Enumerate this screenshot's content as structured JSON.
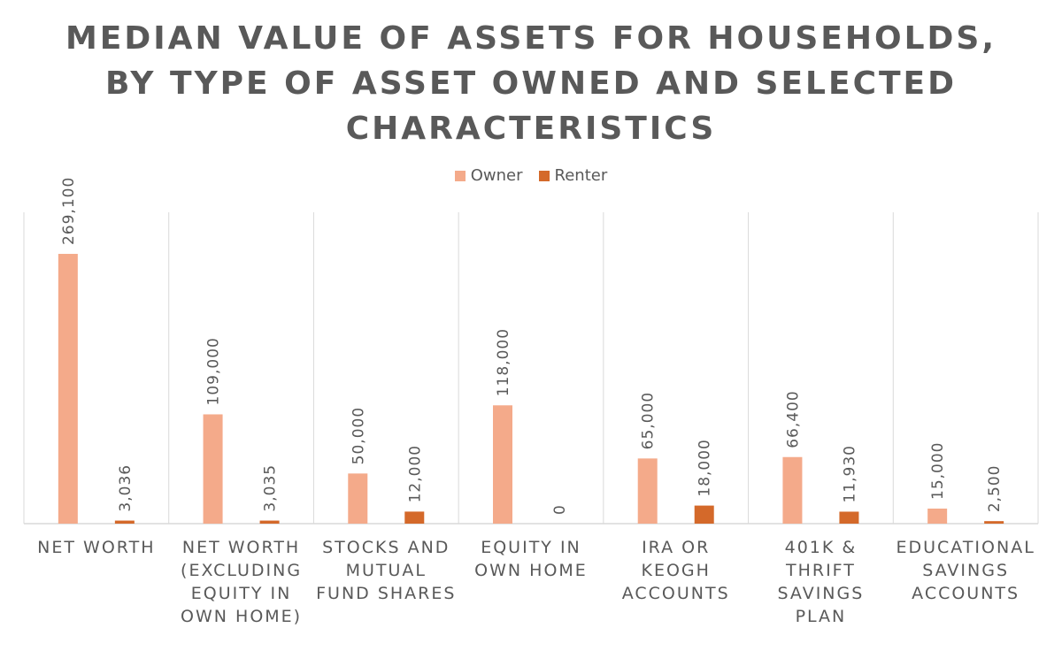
{
  "chart_data": {
    "type": "bar",
    "title_lines": [
      "MEDIAN VALUE OF ASSETS FOR HOUSEHOLDS,",
      "BY TYPE OF ASSET OWNED AND SELECTED",
      "CHARACTERISTICS"
    ],
    "categories": [
      [
        "NET WORTH"
      ],
      [
        "NET WORTH",
        "(EXCLUDING",
        "EQUITY IN",
        "OWN HOME)"
      ],
      [
        "STOCKS AND",
        "MUTUAL",
        "FUND SHARES"
      ],
      [
        "EQUITY IN",
        "OWN HOME"
      ],
      [
        "IRA OR",
        "KEOGH",
        "ACCOUNTS"
      ],
      [
        "401K &",
        "THRIFT",
        "SAVINGS",
        "PLAN"
      ],
      [
        "EDUCATIONAL",
        "SAVINGS",
        "ACCOUNTS"
      ]
    ],
    "series": [
      {
        "name": "Owner",
        "color": "#F4AA8A",
        "values": [
          269100,
          109000,
          50000,
          118000,
          65000,
          66400,
          15000
        ],
        "labels": [
          "269,100",
          "109,000",
          "50,000",
          "118,000",
          "65,000",
          "66,400",
          "15,000"
        ]
      },
      {
        "name": "Renter",
        "color": "#D4692A",
        "values": [
          3036,
          3035,
          12000,
          0,
          18000,
          11930,
          2500
        ],
        "labels": [
          "3,036",
          "3,035",
          "12,000",
          "0",
          "18,000",
          "11,930",
          "2,500"
        ]
      }
    ],
    "ylim": [
      0,
      300000
    ],
    "legend": "top-center",
    "grid": false,
    "category_separators": true
  }
}
